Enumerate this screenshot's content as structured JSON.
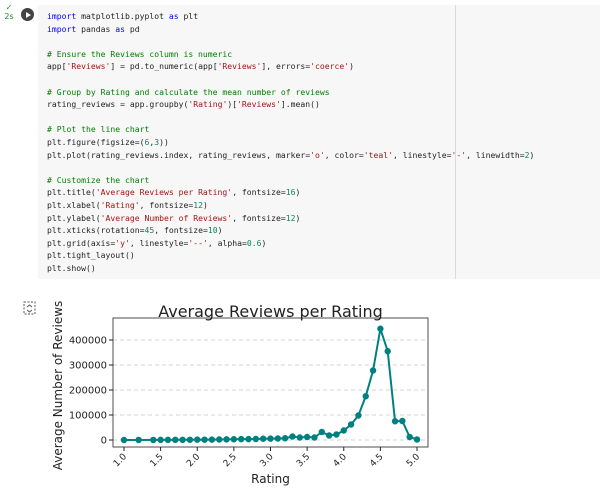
{
  "cell": {
    "status": "✓",
    "time": "2s",
    "blocks": [
      [
        "import matplotlib.pyplot as plt",
        "import pandas as pd"
      ],
      [
        "# Ensure the Reviews column is numeric",
        "app['Reviews'] = pd.to_numeric(app['Reviews'], errors='coerce')"
      ],
      [
        "# Group by Rating and calculate the mean number of reviews",
        "rating_reviews = app.groupby('Rating')['Reviews'].mean()"
      ],
      [
        "# Plot the line chart",
        "plt.figure(figsize=(6,3))",
        "plt.plot(rating_reviews.index, rating_reviews, marker='o', color='teal', linestyle='-', linewidth=2)"
      ],
      [
        "# Customize the chart",
        "plt.title('Average Reviews per Rating', fontsize=16)",
        "plt.xlabel('Rating', fontsize=12)",
        "plt.ylabel('Average Number of Reviews', fontsize=12)",
        "plt.xticks(rotation=45, fontsize=10)",
        "plt.grid(axis='y', linestyle='--', alpha=0.6)",
        "plt.tight_layout()",
        "plt.show()"
      ]
    ]
  },
  "chart_data": {
    "type": "line",
    "title": "Average Reviews per Rating",
    "x_label": "Rating",
    "y_label": "Average Number of Reviews",
    "x": [
      1.0,
      1.2,
      1.4,
      1.5,
      1.6,
      1.7,
      1.8,
      1.9,
      2.0,
      2.1,
      2.2,
      2.3,
      2.4,
      2.5,
      2.6,
      2.7,
      2.8,
      2.9,
      3.0,
      3.1,
      3.2,
      3.3,
      3.4,
      3.5,
      3.6,
      3.7,
      3.8,
      3.9,
      4.0,
      4.1,
      4.2,
      4.3,
      4.4,
      4.5,
      4.6,
      4.7,
      4.8,
      4.9,
      5.0
    ],
    "values": [
      100,
      200,
      300,
      500,
      600,
      700,
      800,
      900,
      1500,
      1200,
      1500,
      2000,
      2500,
      3000,
      3500,
      3500,
      4000,
      5000,
      5500,
      6000,
      7000,
      14000,
      10000,
      12000,
      10000,
      32000,
      18000,
      22000,
      38000,
      62000,
      98000,
      175000,
      278000,
      445000,
      355000,
      75000,
      76000,
      12000,
      2000
    ],
    "color": "teal",
    "xlim": [
      0.85,
      5.15
    ],
    "ylim": [
      -28000,
      488000
    ],
    "xticks": [
      {
        "value": 1,
        "label": "1.0"
      },
      1.5,
      {
        "value": 2,
        "label": "2.0"
      },
      2.5,
      {
        "value": 3,
        "label": "3.0"
      },
      3.5,
      {
        "value": 4,
        "label": "4.0"
      },
      4.5,
      {
        "value": 5,
        "label": "5.0"
      }
    ],
    "yticks": [
      0,
      100000,
      200000,
      300000,
      400000
    ],
    "grid": "y"
  }
}
